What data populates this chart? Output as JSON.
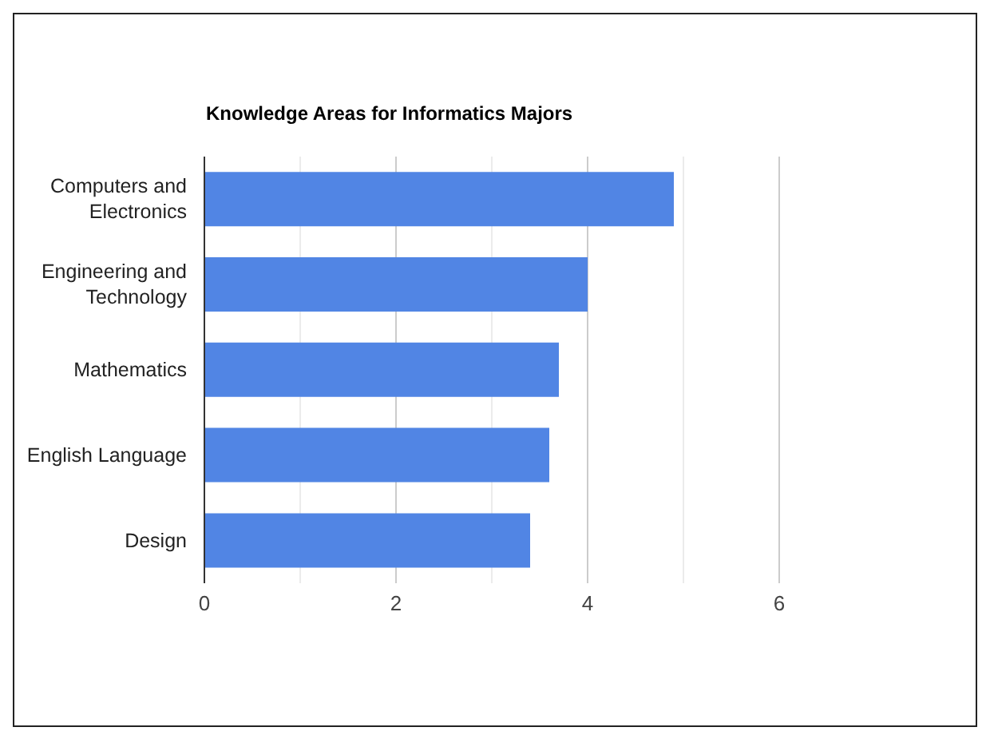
{
  "chart_data": {
    "type": "bar",
    "orientation": "horizontal",
    "title": "Knowledge Areas for Informatics Majors",
    "categories": [
      "Computers and Electronics",
      "Engineering and Technology",
      "Mathematics",
      "English Language",
      "Design"
    ],
    "values": [
      4.9,
      4.0,
      3.7,
      3.6,
      3.4
    ],
    "color": "#5185e4",
    "xlim": [
      0,
      6
    ],
    "xticks": [
      0,
      {
        "value": 1,
        "label": null
      },
      2,
      {
        "value": 3,
        "label": null
      },
      4,
      {
        "value": 5,
        "label": null
      },
      6
    ],
    "grid": "x"
  }
}
